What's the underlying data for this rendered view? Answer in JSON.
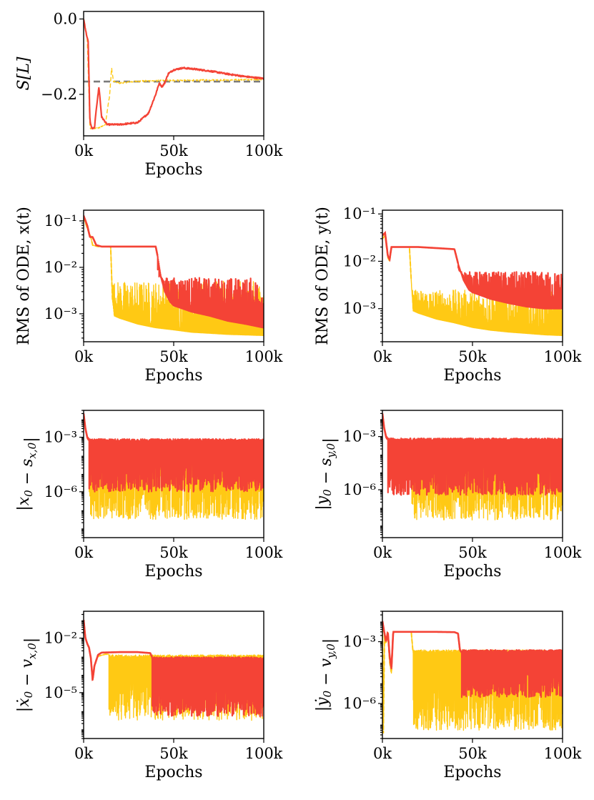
{
  "colors": {
    "red": "#f44336",
    "yellow": "#ffc914",
    "gray": "#7b7b7b"
  },
  "chart_data": [
    {
      "id": "S",
      "type": "line",
      "ylabel": "S[L]",
      "xlabel": "Epochs",
      "xlim": [
        0,
        100000
      ],
      "ylim": [
        -0.31,
        0.02
      ],
      "yscale": "linear",
      "xticks": [
        0,
        50000,
        100000
      ],
      "xtick_labels": [
        "0k",
        "50k",
        "100k"
      ],
      "yticks": [
        0.0,
        -0.2
      ],
      "ytick_labels": [
        "0.0",
        "−0.2"
      ],
      "reference_line": {
        "y": -0.166,
        "style": "dashed",
        "color": "gray"
      },
      "series": [
        {
          "name": "red",
          "style": "solid",
          "x": [
            0,
            1500,
            2500,
            3500,
            4500,
            6000,
            7000,
            8500,
            10000,
            13000,
            20000,
            30000,
            36000,
            40000,
            42000,
            43500,
            45000,
            47000,
            50000,
            55000,
            60000,
            70000,
            80000,
            90000,
            100000
          ],
          "values": [
            0,
            -0.04,
            -0.06,
            -0.27,
            -0.29,
            -0.29,
            -0.24,
            -0.18,
            -0.26,
            -0.28,
            -0.28,
            -0.275,
            -0.25,
            -0.2,
            -0.17,
            -0.18,
            -0.17,
            -0.145,
            -0.135,
            -0.13,
            -0.132,
            -0.138,
            -0.146,
            -0.153,
            -0.158
          ]
        },
        {
          "name": "yellow",
          "style": "dashed",
          "x": [
            0,
            2000,
            3500,
            5000,
            8000,
            12000,
            14500,
            15500,
            16500,
            20000,
            30000,
            40000,
            50000,
            60000,
            70000,
            80000,
            90000,
            100000
          ],
          "values": [
            0,
            -0.05,
            -0.29,
            -0.29,
            -0.29,
            -0.28,
            -0.2,
            -0.13,
            -0.165,
            -0.17,
            -0.165,
            -0.164,
            -0.163,
            -0.163,
            -0.162,
            -0.162,
            -0.161,
            -0.16
          ]
        }
      ]
    },
    {
      "id": "rmsx",
      "type": "line",
      "ylabel": "RMS of ODE, x(t)",
      "xlabel": "Epochs",
      "xlim": [
        0,
        100000
      ],
      "ylim": [
        0.00025,
        0.17
      ],
      "yscale": "log",
      "xticks": [
        0,
        50000,
        100000
      ],
      "xtick_labels": [
        "0k",
        "50k",
        "100k"
      ],
      "yticks": [
        0.1,
        0.01,
        0.001
      ],
      "ytick_labels": [
        "10⁻¹",
        "10⁻²",
        "10⁻³"
      ],
      "series": [
        {
          "name": "yellow",
          "style": "dashed",
          "x": [
            0,
            2000,
            4000,
            5000,
            8000,
            12000,
            15000,
            16000,
            17000,
            20000,
            30000,
            40000,
            50000,
            60000,
            70000,
            80000,
            90000,
            100000
          ],
          "values": [
            0.12,
            0.07,
            0.045,
            0.03,
            0.028,
            0.028,
            0.028,
            0.002,
            0.0009,
            0.0008,
            0.0006,
            0.0005,
            0.00045,
            0.0004,
            0.00038,
            0.00036,
            0.00035,
            0.00034
          ],
          "spike_top": 0.005,
          "spike_from": 16000
        },
        {
          "name": "red",
          "style": "solid",
          "x": [
            0,
            2000,
            3500,
            5000,
            7000,
            10000,
            20000,
            30000,
            40000,
            41000,
            43000,
            45000,
            48000,
            50000,
            60000,
            70000,
            80000,
            90000,
            100000
          ],
          "values": [
            0.13,
            0.08,
            0.045,
            0.045,
            0.03,
            0.028,
            0.028,
            0.028,
            0.028,
            0.018,
            0.006,
            0.003,
            0.0018,
            0.0015,
            0.0011,
            0.0009,
            0.0007,
            0.0006,
            0.0005
          ],
          "spike_top": 0.006,
          "spike_from": 41000
        }
      ]
    },
    {
      "id": "rmsy",
      "type": "line",
      "ylabel": "RMS of ODE, y(t)",
      "xlabel": "Epochs",
      "xlim": [
        0,
        100000
      ],
      "ylim": [
        0.0002,
        0.12
      ],
      "yscale": "log",
      "xticks": [
        0,
        50000,
        100000
      ],
      "xtick_labels": [
        "0k",
        "50k",
        "100k"
      ],
      "yticks": [
        0.1,
        0.01,
        0.001
      ],
      "ytick_labels": [
        "10⁻¹",
        "10⁻²",
        "10⁻³"
      ],
      "series": [
        {
          "name": "yellow",
          "style": "dashed",
          "x": [
            0,
            1500,
            3000,
            4000,
            5000,
            7000,
            10000,
            15000,
            16000,
            17000,
            20000,
            30000,
            40000,
            50000,
            60000,
            70000,
            80000,
            90000,
            100000
          ],
          "values": [
            0.03,
            0.035,
            0.012,
            0.01,
            0.02,
            0.02,
            0.02,
            0.02,
            0.004,
            0.0009,
            0.0008,
            0.0006,
            0.0005,
            0.0004,
            0.00035,
            0.00032,
            0.0003,
            0.00028,
            0.00027
          ],
          "spike_top": 0.0025,
          "spike_from": 16000
        },
        {
          "name": "red",
          "style": "solid",
          "x": [
            0,
            1500,
            3000,
            4000,
            5000,
            7000,
            10000,
            20000,
            30000,
            40000,
            42000,
            45000,
            48000,
            50000,
            60000,
            70000,
            80000,
            90000,
            100000
          ],
          "values": [
            0.035,
            0.04,
            0.013,
            0.011,
            0.02,
            0.02,
            0.02,
            0.02,
            0.019,
            0.018,
            0.009,
            0.004,
            0.0025,
            0.0022,
            0.0016,
            0.0013,
            0.0011,
            0.001,
            0.001
          ],
          "spike_top": 0.006,
          "spike_from": 42000
        }
      ]
    },
    {
      "id": "x0",
      "type": "line",
      "ylabel": "|x₀ − s_x,0|",
      "ylabel_parts": {
        "open": "|x",
        "sub0": "0",
        "mid": " − s",
        "sub1": "x,0",
        "close": "|"
      },
      "xlabel": "Epochs",
      "xlim": [
        0,
        100000
      ],
      "ylim": [
        3e-09,
        0.03
      ],
      "yscale": "log",
      "xticks": [
        0,
        50000,
        100000
      ],
      "xtick_labels": [
        "0k",
        "50k",
        "100k"
      ],
      "yticks": [
        0.001,
        1e-06
      ],
      "ytick_labels": [
        "10⁻³",
        "10⁻⁶"
      ],
      "series": [
        {
          "name": "yellow",
          "style": "dashed",
          "x": [
            0,
            1000,
            2000,
            3000,
            5000,
            100000
          ],
          "values": [
            0.01,
            0.003,
            0.001,
            0.0007,
            0.0005,
            0.0005
          ],
          "spike_top": 0.0005,
          "spike_bottom": 3e-08,
          "spike_from": 3000
        },
        {
          "name": "red",
          "style": "solid",
          "x": [
            0,
            1000,
            2000,
            3000,
            5000,
            100000
          ],
          "values": [
            0.02,
            0.003,
            0.001,
            0.0007,
            0.0005,
            0.0005
          ],
          "spike_top": 0.0008,
          "spike_bottom": 1e-06,
          "spike_from": 3000
        }
      ]
    },
    {
      "id": "y0",
      "type": "line",
      "ylabel": "|y₀ − s_y,0|",
      "ylabel_parts": {
        "open": "|y",
        "sub0": "0",
        "mid": " − s",
        "sub1": "y,0",
        "close": "|"
      },
      "xlabel": "Epochs",
      "xlim": [
        0,
        100000
      ],
      "ylim": [
        2e-09,
        0.03
      ],
      "yscale": "log",
      "xticks": [
        0,
        50000,
        100000
      ],
      "xtick_labels": [
        "0k",
        "50k",
        "100k"
      ],
      "yticks": [
        0.001,
        1e-06
      ],
      "ytick_labels": [
        "10⁻³",
        "10⁻⁶"
      ],
      "series": [
        {
          "name": "yellow",
          "style": "dashed",
          "x": [
            0,
            1000,
            2000,
            3000,
            5000,
            8000,
            16000,
            100000
          ],
          "values": [
            0.01,
            0.003,
            0.001,
            0.0007,
            0.0003,
            0.0005,
            0.0004,
            0.0004
          ],
          "spike_top": 0.0004,
          "spike_bottom": 2e-08,
          "spike_from": 16000
        },
        {
          "name": "red",
          "style": "solid",
          "x": [
            0,
            1000,
            2000,
            3000,
            5000,
            8000,
            100000
          ],
          "values": [
            0.02,
            0.003,
            0.001,
            0.0007,
            0.0005,
            0.0005,
            0.0004
          ],
          "spike_top": 0.0008,
          "spike_bottom": 5e-07,
          "spike_from": 3000
        }
      ]
    },
    {
      "id": "vx",
      "type": "line",
      "ylabel": "|ẋ₀ − v_x,0|",
      "ylabel_parts": {
        "open": "|ẋ",
        "sub0": "0",
        "mid": " − v",
        "sub1": "x,0",
        "close": "|"
      },
      "xlabel": "Epochs",
      "xlim": [
        0,
        100000
      ],
      "ylim": [
        3e-08,
        0.3
      ],
      "yscale": "log",
      "xticks": [
        0,
        50000,
        100000
      ],
      "xtick_labels": [
        "0k",
        "50k",
        "100k"
      ],
      "yticks": [
        0.01,
        1e-05
      ],
      "ytick_labels": [
        "10⁻²",
        "10⁻⁵"
      ],
      "series": [
        {
          "name": "yellow",
          "style": "dashed",
          "x": [
            0,
            1000,
            2000,
            3000,
            4000,
            5000,
            6000,
            8000,
            12000,
            14000,
            16000,
            100000
          ],
          "values": [
            0.1,
            0.01,
            0.005,
            0.003,
            0.0008,
            5e-05,
            0.0003,
            0.001,
            0.0013,
            0.0013,
            0.0013,
            0.001
          ],
          "spike_top": 0.0012,
          "spike_bottom": 3e-07,
          "spike_from": 14000
        },
        {
          "name": "red",
          "style": "solid",
          "x": [
            0,
            1000,
            2000,
            3000,
            4000,
            5000,
            6000,
            8000,
            10000,
            20000,
            30000,
            37000,
            38000,
            40000,
            100000
          ],
          "values": [
            0.1,
            0.01,
            0.005,
            0.003,
            0.0008,
            5e-05,
            0.0003,
            0.0012,
            0.0016,
            0.0017,
            0.0017,
            0.0015,
            0.0009,
            0.0006,
            0.0005
          ],
          "spike_top": 0.0009,
          "spike_bottom": 5e-07,
          "spike_from": 38000
        }
      ]
    },
    {
      "id": "vy",
      "type": "line",
      "ylabel": "|ẏ₀ − v_y,0|",
      "ylabel_parts": {
        "open": "|ẏ",
        "sub0": "0",
        "mid": " − v",
        "sub1": "y,0",
        "close": "|"
      },
      "xlabel": "Epochs",
      "xlim": [
        0,
        100000
      ],
      "ylim": [
        2e-08,
        0.03
      ],
      "yscale": "log",
      "xticks": [
        0,
        50000,
        100000
      ],
      "xtick_labels": [
        "0k",
        "50k",
        "100k"
      ],
      "yticks": [
        0.001,
        1e-06
      ],
      "ytick_labels": [
        "10⁻³",
        "10⁻⁶"
      ],
      "series": [
        {
          "name": "yellow",
          "style": "dashed",
          "x": [
            0,
            500,
            1200,
            2000,
            3000,
            4000,
            5000,
            6000,
            8000,
            10000,
            14000,
            16000,
            17000,
            100000
          ],
          "values": [
            0.01,
            3e-08,
            0.003,
            0.0008,
            0.003,
            0.0001,
            3e-05,
            0.003,
            0.003,
            0.003,
            0.003,
            0.003,
            0.0003,
            0.0002
          ],
          "spike_top": 0.0004,
          "spike_bottom": 5e-08,
          "spike_from": 17000
        },
        {
          "name": "red",
          "style": "solid",
          "x": [
            0,
            1000,
            2000,
            3000,
            4000,
            5000,
            6000,
            8000,
            10000,
            20000,
            30000,
            40000,
            42000,
            43000,
            44000,
            100000
          ],
          "values": [
            0.01,
            0.003,
            0.001,
            0.003,
            0.0002,
            5e-05,
            0.003,
            0.003,
            0.003,
            0.003,
            0.003,
            0.0029,
            0.0025,
            0.0004,
            0.0003,
            0.0003
          ],
          "spike_top": 0.0004,
          "spike_bottom": 2e-06,
          "spike_from": 44000
        }
      ]
    }
  ]
}
